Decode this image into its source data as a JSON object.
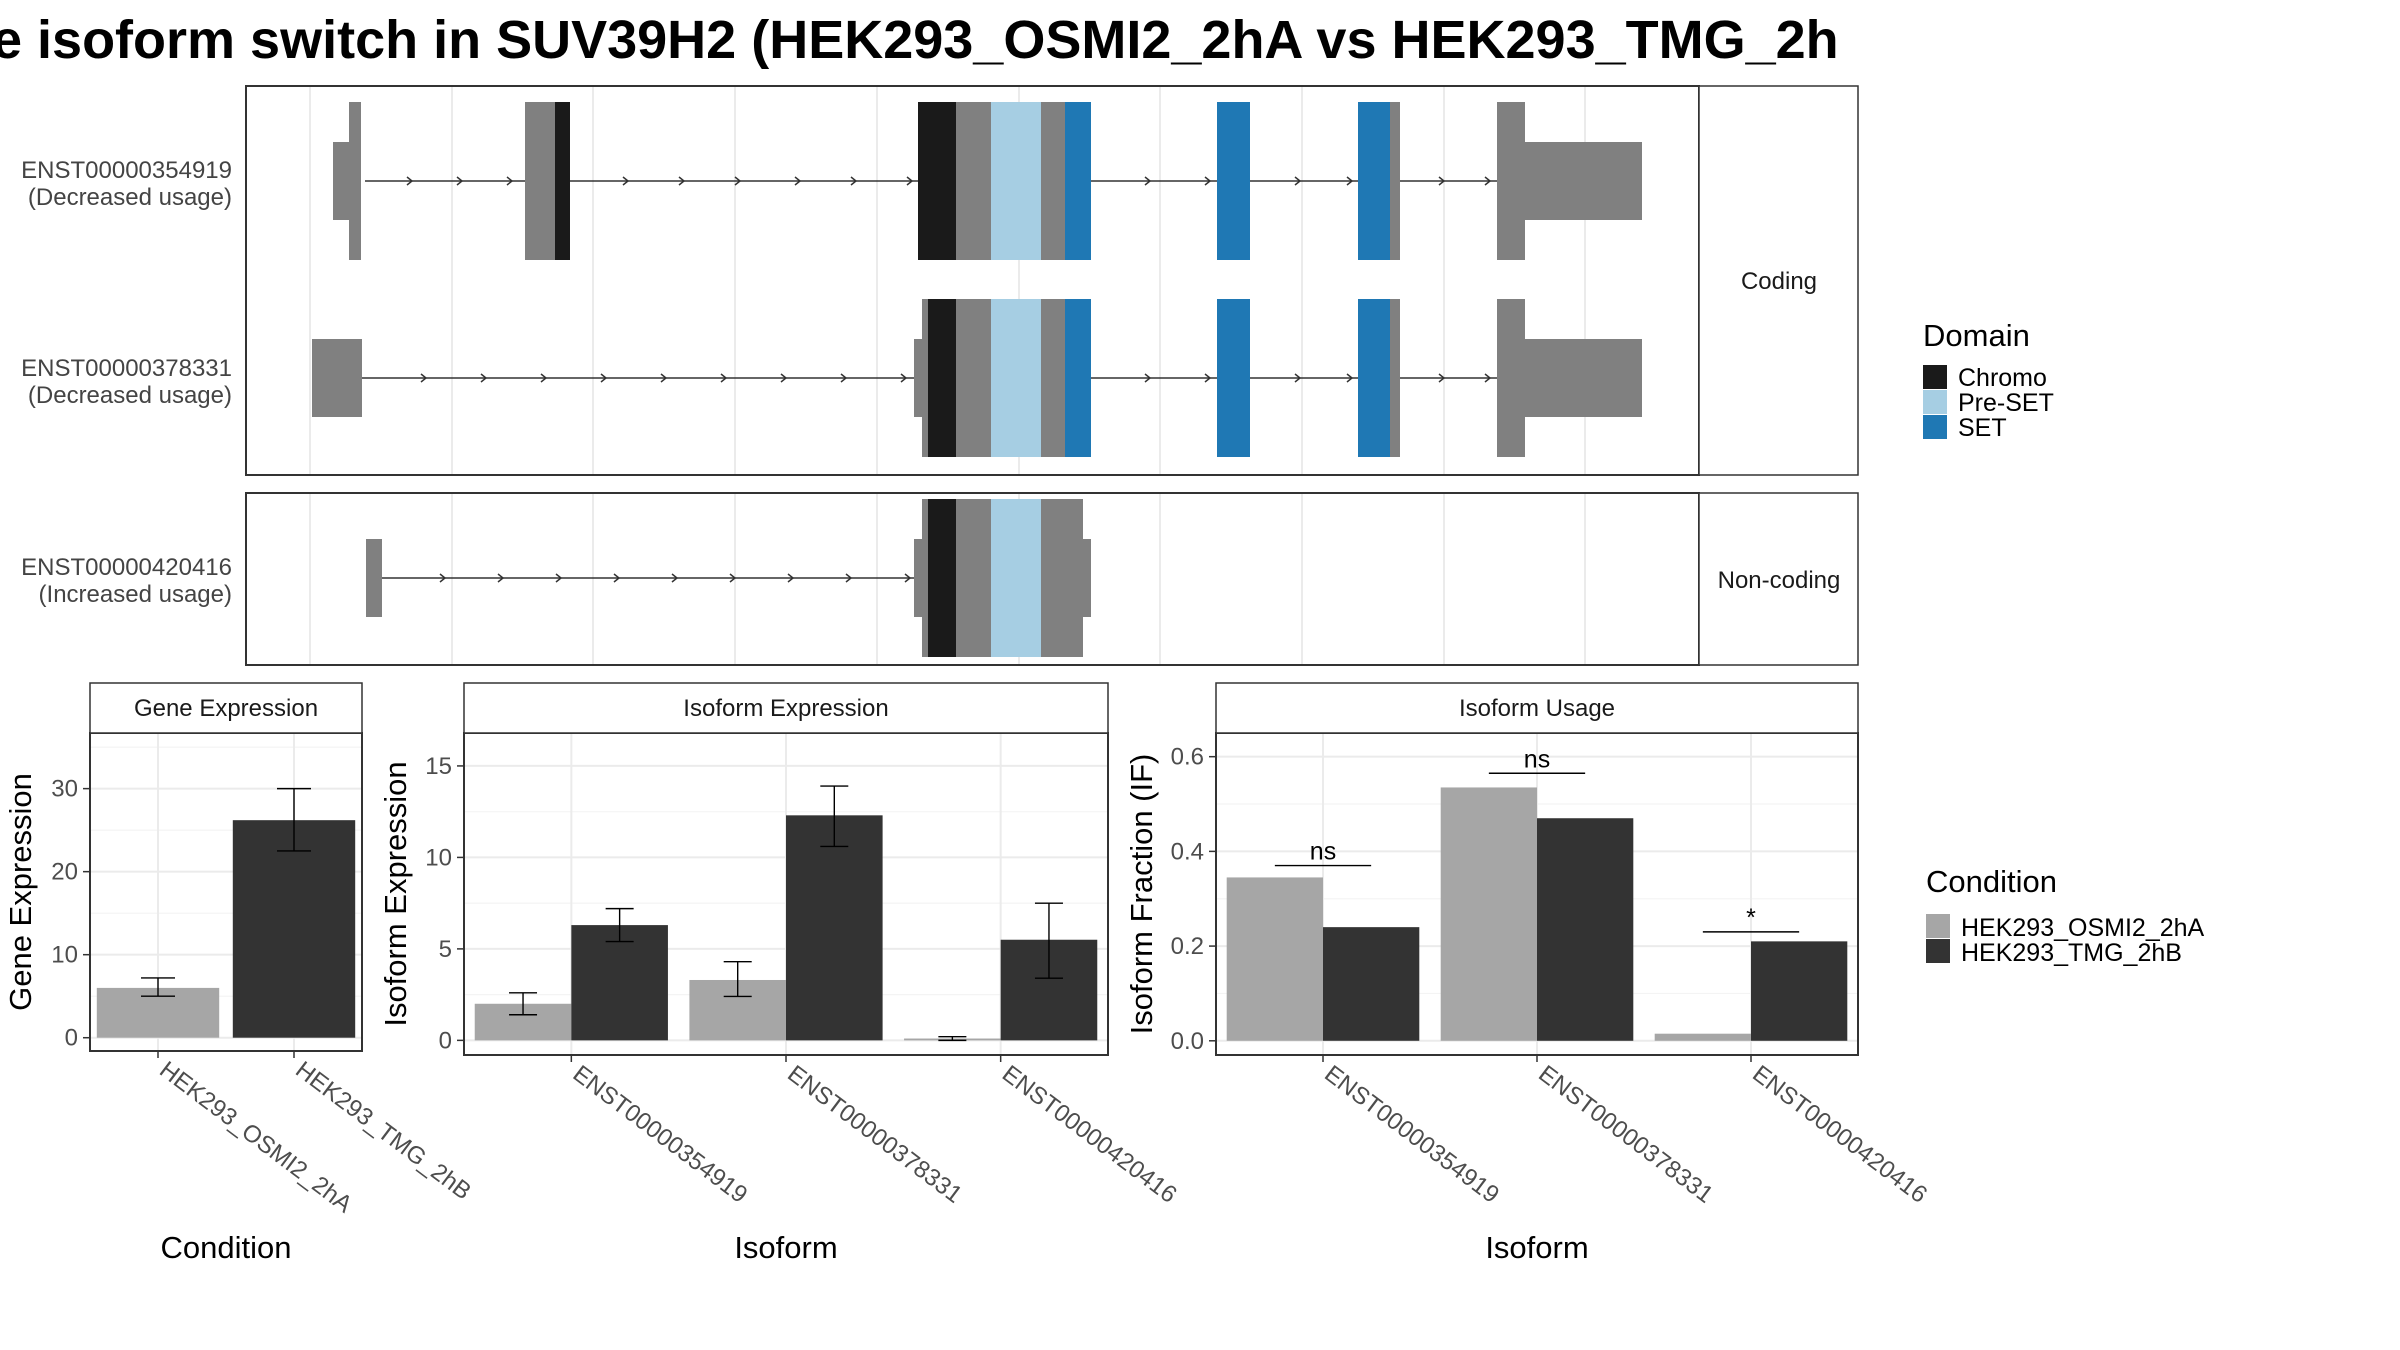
{
  "title": "e isoform switch in SUV39H2 (HEK293_OSMI2_2hA vs HEK293_TMG_2h",
  "colors": {
    "exon": "#808080",
    "Chromo": "#1a1a1a",
    "Pre-SET": "#a6cee3",
    "SET": "#1f78b4",
    "HEK293_OSMI2_2hA": "#a6a6a6",
    "HEK293_TMG_2hB": "#333333"
  },
  "structure": {
    "groups": [
      {
        "label": "Coding",
        "transcripts": [
          {
            "id": "ENST00000354919",
            "usage": "(Decreased usage)"
          },
          {
            "id": "ENST00000378331",
            "usage": "(Decreased usage)"
          }
        ]
      },
      {
        "label": "Non-coding",
        "transcripts": [
          {
            "id": "ENST00000420416",
            "usage": "(Increased usage)"
          }
        ]
      }
    ]
  },
  "domain_legend": {
    "title": "Domain",
    "items": [
      {
        "name": "Chromo",
        "color": "#1a1a1a"
      },
      {
        "name": "Pre-SET",
        "color": "#a6cee3"
      },
      {
        "name": "SET",
        "color": "#1f78b4"
      }
    ]
  },
  "condition_legend": {
    "title": "Condition",
    "items": [
      {
        "name": "HEK293_OSMI2_2hA",
        "color": "#a6a6a6"
      },
      {
        "name": "HEK293_TMG_2hB",
        "color": "#333333"
      }
    ]
  },
  "chart_data": [
    {
      "type": "bar",
      "title": "Gene Expression",
      "xlabel": "Condition",
      "ylabel": "Gene Expression",
      "categories": [
        "HEK293_OSMI2_2hA",
        "HEK293_TMG_2hB"
      ],
      "values": [
        6.0,
        26.2
      ],
      "error": [
        [
          5.0,
          7.2
        ],
        [
          22.5,
          30.0
        ]
      ],
      "yticks": [
        0,
        10,
        20,
        30
      ],
      "ylim": [
        -1.6,
        36.7
      ]
    },
    {
      "type": "bar",
      "title": "Isoform Expression",
      "xlabel": "Isoform",
      "ylabel": "Isoform Expression",
      "categories": [
        "ENST00000354919",
        "ENST00000378331",
        "ENST00000420416"
      ],
      "series": [
        {
          "name": "HEK293_OSMI2_2hA",
          "values": [
            2.0,
            3.3,
            0.1
          ],
          "error": [
            [
              1.4,
              2.6
            ],
            [
              2.4,
              4.3
            ],
            [
              0.0,
              0.2
            ]
          ]
        },
        {
          "name": "HEK293_TMG_2hB",
          "values": [
            6.3,
            12.3,
            5.5
          ],
          "error": [
            [
              5.4,
              7.2
            ],
            [
              10.6,
              13.9
            ],
            [
              3.4,
              7.5
            ]
          ]
        }
      ],
      "yticks": [
        0,
        5,
        10,
        15
      ],
      "ylim": [
        -0.8,
        16.8
      ]
    },
    {
      "type": "bar",
      "title": "Isoform Usage",
      "xlabel": "Isoform",
      "ylabel": "Isoform Fraction (IF)",
      "categories": [
        "ENST00000354919",
        "ENST00000378331",
        "ENST00000420416"
      ],
      "series": [
        {
          "name": "HEK293_OSMI2_2hA",
          "values": [
            0.345,
            0.535,
            0.015
          ]
        },
        {
          "name": "HEK293_TMG_2hB",
          "values": [
            0.24,
            0.47,
            0.21
          ]
        }
      ],
      "significance": [
        {
          "label": "ns",
          "y": 0.37
        },
        {
          "label": "ns",
          "y": 0.565
        },
        {
          "label": "*",
          "y": 0.23
        }
      ],
      "yticks": [
        0.0,
        0.2,
        0.4,
        0.6
      ],
      "yticklabels": [
        "0.0",
        "0.2",
        "0.4",
        "0.6"
      ],
      "ylim": [
        -0.03,
        0.65
      ]
    }
  ]
}
